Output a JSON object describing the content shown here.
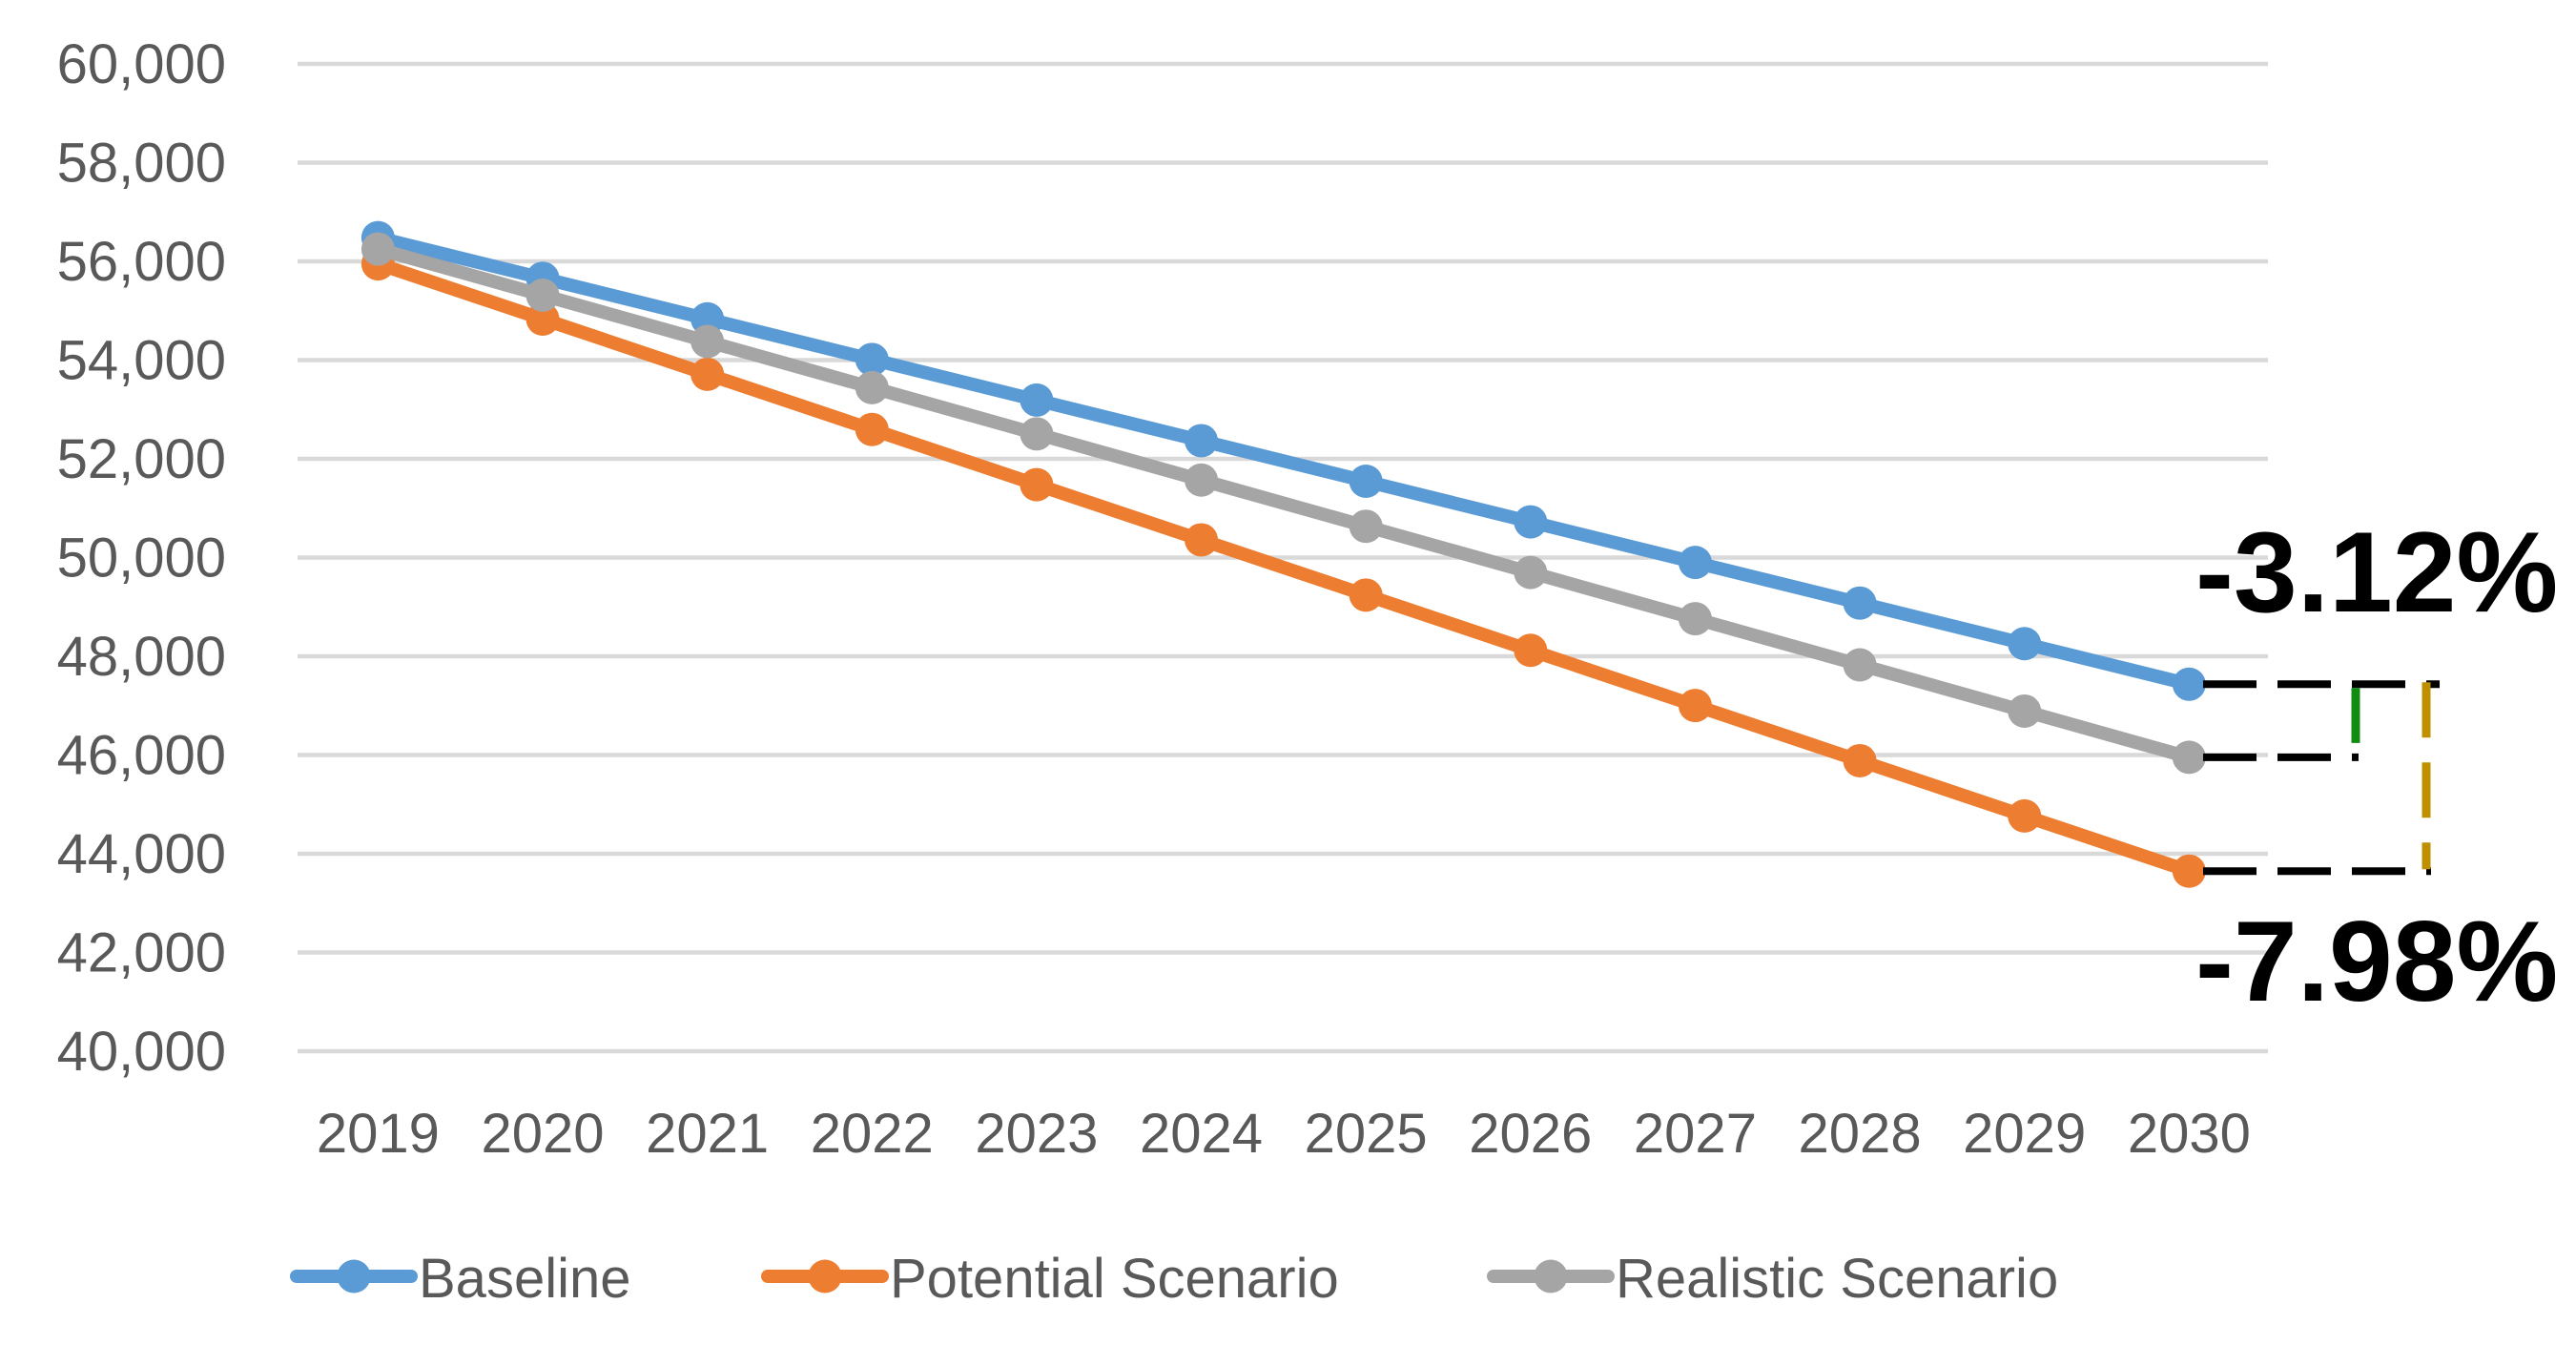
{
  "chart_data": {
    "type": "line",
    "title": "",
    "categories": [
      "2019",
      "2020",
      "2021",
      "2022",
      "2023",
      "2024",
      "2025",
      "2026",
      "2027",
      "2028",
      "2029",
      "2030"
    ],
    "series": [
      {
        "name": "Baseline",
        "color": "#5B9BD5",
        "values": [
          56480,
          55658,
          54835,
          54013,
          53190,
          52368,
          51546,
          50723,
          49901,
          49078,
          48256,
          47434
        ]
      },
      {
        "name": "Potential Scenario",
        "color": "#ED7D31",
        "values": [
          55950,
          54832,
          53713,
          52595,
          51477,
          50358,
          49240,
          48121,
          47003,
          45885,
          44766,
          43648
        ]
      },
      {
        "name": "Realistic Scenario",
        "color": "#A5A5A5",
        "values": [
          56250,
          55314,
          54378,
          53442,
          52506,
          51570,
          50634,
          49698,
          48762,
          47826,
          46890,
          45954
        ]
      }
    ],
    "y_axis": {
      "min": 40000,
      "max": 60000,
      "step": 2000,
      "tick_labels": [
        "40,000",
        "42,000",
        "44,000",
        "46,000",
        "48,000",
        "50,000",
        "52,000",
        "54,000",
        "56,000",
        "58,000",
        "60,000"
      ]
    },
    "x_axis": {
      "tick_labels": [
        "2019",
        "2020",
        "2021",
        "2022",
        "2023",
        "2024",
        "2025",
        "2026",
        "2027",
        "2028",
        "2029",
        "2030"
      ]
    },
    "grid": true,
    "legend": {
      "position": "bottom",
      "entries": [
        "Baseline",
        "Potential Scenario",
        "Realistic Scenario"
      ]
    },
    "annotations": [
      {
        "label": "-3.12%"
      },
      {
        "label": "-7.98%"
      }
    ],
    "annotation_colors": {
      "leader": "#000000",
      "realistic_bracket": "#108C10",
      "potential_bracket": "#BF8F00"
    },
    "colors": {
      "gridline": "#D9D9D9",
      "axis_text": "#595959",
      "background": "#FFFFFF"
    }
  }
}
